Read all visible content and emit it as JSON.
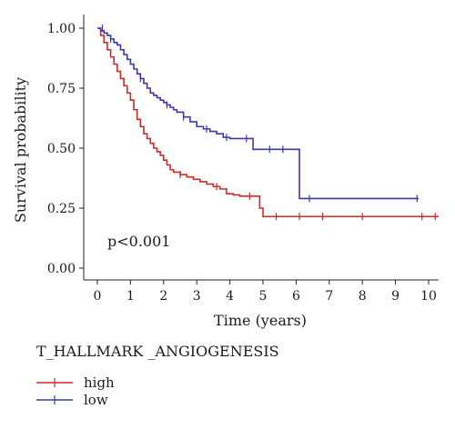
{
  "chart_data": {
    "type": "line",
    "xlabel": "Time (years)",
    "ylabel": "Survival probability",
    "xlim": [
      0,
      10.3
    ],
    "ylim": [
      0,
      1.0
    ],
    "xticks": [
      0,
      1,
      2,
      3,
      4,
      5,
      6,
      7,
      8,
      9,
      10
    ],
    "yticks": [
      "0.00",
      "0.25",
      "0.50",
      "0.75",
      "1.00"
    ],
    "annotation": "p<0.001",
    "legend_title": "T_HALLMARK _ANGIOGENESIS",
    "legend_position": "bottom-left",
    "colors": {
      "high": "#cc2b2b",
      "low": "#3a3aa8",
      "axis": "#222222"
    },
    "series": [
      {
        "name": "high",
        "step_x": [
          0,
          0.1,
          0.2,
          0.3,
          0.4,
          0.5,
          0.6,
          0.7,
          0.8,
          0.9,
          1.0,
          1.1,
          1.2,
          1.3,
          1.4,
          1.5,
          1.6,
          1.7,
          1.8,
          1.9,
          2.0,
          2.1,
          2.2,
          2.3,
          2.5,
          2.7,
          2.9,
          3.1,
          3.3,
          3.5,
          3.7,
          3.9,
          4.1,
          4.3,
          4.5,
          4.7,
          4.8,
          4.9,
          5.0,
          10.3
        ],
        "step_y": [
          1.0,
          0.97,
          0.94,
          0.91,
          0.88,
          0.85,
          0.82,
          0.79,
          0.76,
          0.73,
          0.7,
          0.66,
          0.62,
          0.59,
          0.56,
          0.54,
          0.52,
          0.5,
          0.485,
          0.47,
          0.45,
          0.43,
          0.41,
          0.4,
          0.39,
          0.38,
          0.37,
          0.36,
          0.35,
          0.34,
          0.33,
          0.31,
          0.305,
          0.3,
          0.3,
          0.3,
          0.3,
          0.25,
          0.215,
          0.215
        ],
        "censor_x": [
          2.5,
          3.6,
          4.6,
          5.4,
          6.1,
          6.8,
          8.0,
          9.8,
          10.2
        ],
        "censor_y": [
          0.39,
          0.34,
          0.3,
          0.215,
          0.215,
          0.215,
          0.215,
          0.215,
          0.215
        ]
      },
      {
        "name": "low",
        "step_x": [
          0,
          0.1,
          0.2,
          0.3,
          0.4,
          0.5,
          0.6,
          0.7,
          0.8,
          0.9,
          1.0,
          1.1,
          1.2,
          1.3,
          1.4,
          1.5,
          1.6,
          1.7,
          1.8,
          1.9,
          2.0,
          2.1,
          2.2,
          2.3,
          2.4,
          2.6,
          2.8,
          3.0,
          3.2,
          3.4,
          3.6,
          3.8,
          4.0,
          4.3,
          4.6,
          4.7,
          5.0,
          5.6,
          6.0,
          6.1,
          9.7
        ],
        "step_y": [
          1.0,
          0.99,
          0.98,
          0.97,
          0.955,
          0.94,
          0.93,
          0.91,
          0.89,
          0.87,
          0.85,
          0.83,
          0.81,
          0.79,
          0.77,
          0.75,
          0.73,
          0.72,
          0.71,
          0.7,
          0.69,
          0.68,
          0.67,
          0.66,
          0.65,
          0.63,
          0.61,
          0.59,
          0.58,
          0.57,
          0.56,
          0.545,
          0.54,
          0.54,
          0.54,
          0.495,
          0.495,
          0.495,
          0.495,
          0.29,
          0.29
        ],
        "censor_x": [
          0.15,
          0.4,
          1.3,
          2.1,
          2.6,
          3.3,
          3.9,
          4.5,
          5.2,
          5.6,
          6.4,
          9.65
        ],
        "censor_y": [
          1.0,
          0.955,
          0.79,
          0.68,
          0.63,
          0.58,
          0.545,
          0.54,
          0.495,
          0.495,
          0.29,
          0.29
        ]
      }
    ]
  }
}
